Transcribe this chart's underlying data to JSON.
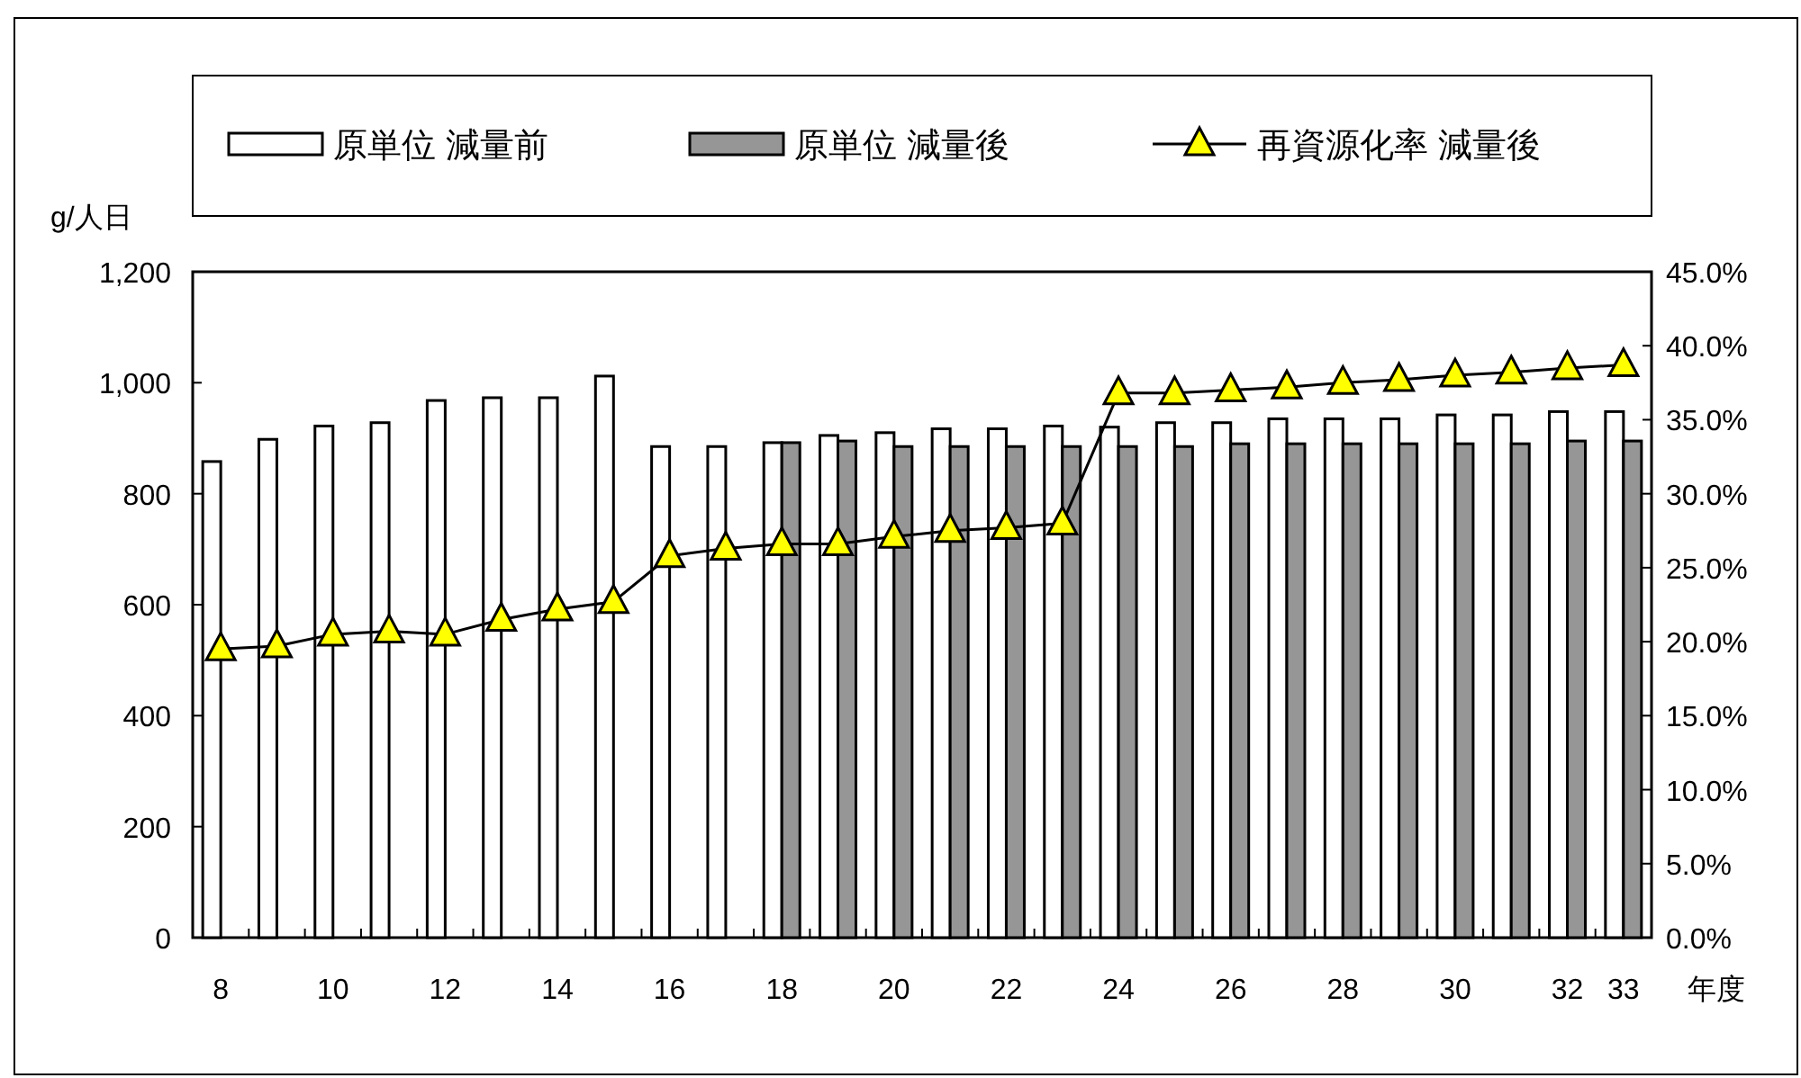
{
  "chart_data": {
    "type": "bar",
    "ylabel": "g/人日",
    "xlabel": "年度",
    "categories": [
      "8",
      null,
      "10",
      null,
      "12",
      null,
      "14",
      null,
      "16",
      null,
      "18",
      null,
      "20",
      null,
      "22",
      null,
      "24",
      null,
      "26",
      null,
      "28",
      null,
      "30",
      null,
      "32",
      "33"
    ],
    "series": [
      {
        "name": "原単位 減量前",
        "color": "#ffffff",
        "values": [
          858,
          898,
          922,
          928,
          968,
          973,
          973,
          1012,
          885,
          885,
          892,
          905,
          910,
          917,
          917,
          922,
          920,
          928,
          928,
          935,
          935,
          935,
          942,
          942,
          948,
          948
        ]
      },
      {
        "name": "原単位 減量後",
        "color": "#969696",
        "values": [
          null,
          null,
          null,
          null,
          null,
          null,
          null,
          null,
          null,
          null,
          892,
          895,
          885,
          885,
          885,
          885,
          885,
          885,
          890,
          890,
          890,
          890,
          890,
          890,
          895,
          895
        ]
      },
      {
        "name": "再資源化率 減量後",
        "type": "line",
        "axis": "y2",
        "color": "#ffff00",
        "values": [
          19.5,
          19.7,
          20.5,
          20.7,
          20.5,
          21.5,
          22.2,
          22.7,
          25.8,
          26.3,
          26.6,
          26.6,
          27.1,
          27.5,
          27.7,
          28.0,
          36.8,
          36.8,
          37.0,
          37.2,
          37.5,
          37.7,
          38.0,
          38.2,
          38.5,
          38.7
        ]
      }
    ],
    "ylim": [
      0,
      1200
    ],
    "yticks": [
      0,
      200,
      400,
      600,
      800,
      {
        "value": 1000,
        "label": "1,000"
      },
      {
        "value": 1200,
        "label": "1,200"
      }
    ],
    "y2lim": [
      0,
      45
    ],
    "y2ticks": [
      {
        "value": 0,
        "label": "0.0%"
      },
      {
        "value": 5,
        "label": "5.0%"
      },
      {
        "value": 10,
        "label": "10.0%"
      },
      {
        "value": 15,
        "label": "15.0%"
      },
      {
        "value": 20,
        "label": "20.0%"
      },
      {
        "value": 25,
        "label": "25.0%"
      },
      {
        "value": 30,
        "label": "30.0%"
      },
      {
        "value": 35,
        "label": "35.0%"
      },
      {
        "value": 40,
        "label": "40.0%"
      },
      {
        "value": 45,
        "label": "45.0%"
      }
    ],
    "marker": "triangle",
    "grid": false,
    "legend": "top"
  }
}
